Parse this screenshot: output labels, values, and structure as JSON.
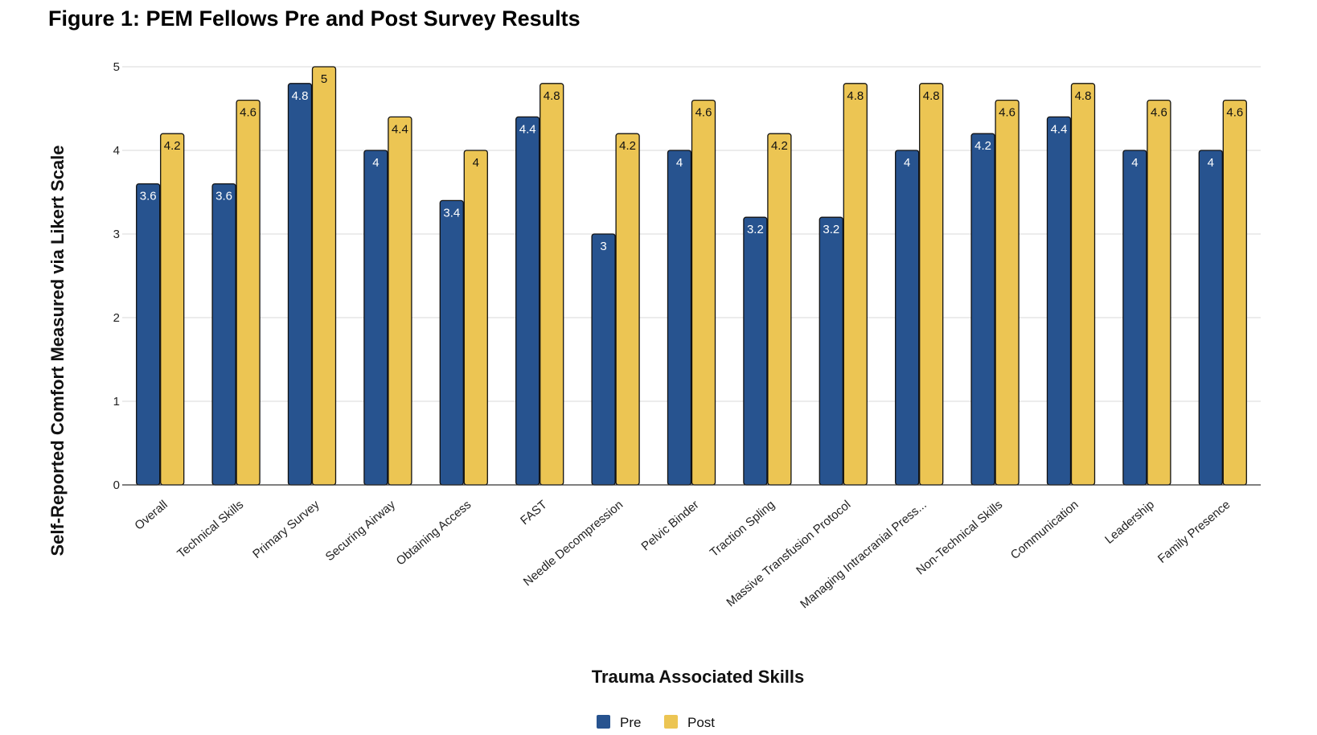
{
  "chart_data": {
    "type": "bar",
    "title": "Figure 1: PEM Fellows Pre and Post Survey Results",
    "xlabel": "Trauma Associated Skills",
    "ylabel": "Self-Reported Comfort Measured via Likert Scale",
    "ylim": [
      0,
      5
    ],
    "yticks": [
      "0",
      "1",
      "2",
      "3",
      "4",
      "5"
    ],
    "grid": true,
    "legend_position": "bottom-center",
    "categories": [
      "Overall",
      "Technical Skills",
      "Primary Survey",
      "Securing Airway",
      "Obtaining Access",
      "FAST",
      "Needle Decompression",
      "Pelvic Binder",
      "Traction Spling",
      "Massive Transfusion Protocol",
      "Managing Intracranial Press...",
      "Non-Technical Skills",
      "Communication",
      "Leadership",
      "Family Presence"
    ],
    "series": [
      {
        "name": "Pre",
        "color": "#27538f",
        "label_color": "#ffffff",
        "values": [
          3.6,
          3.6,
          4.8,
          4,
          3.4,
          4.4,
          3,
          4,
          3.2,
          3.2,
          4,
          4.2,
          4.4,
          4,
          4
        ]
      },
      {
        "name": "Post",
        "color": "#ecc553",
        "label_color": "#111111",
        "values": [
          4.2,
          4.6,
          5,
          4.4,
          4,
          4.8,
          4.2,
          4.6,
          4.2,
          4.8,
          4.8,
          4.6,
          4.8,
          4.6,
          4.6
        ]
      }
    ]
  }
}
